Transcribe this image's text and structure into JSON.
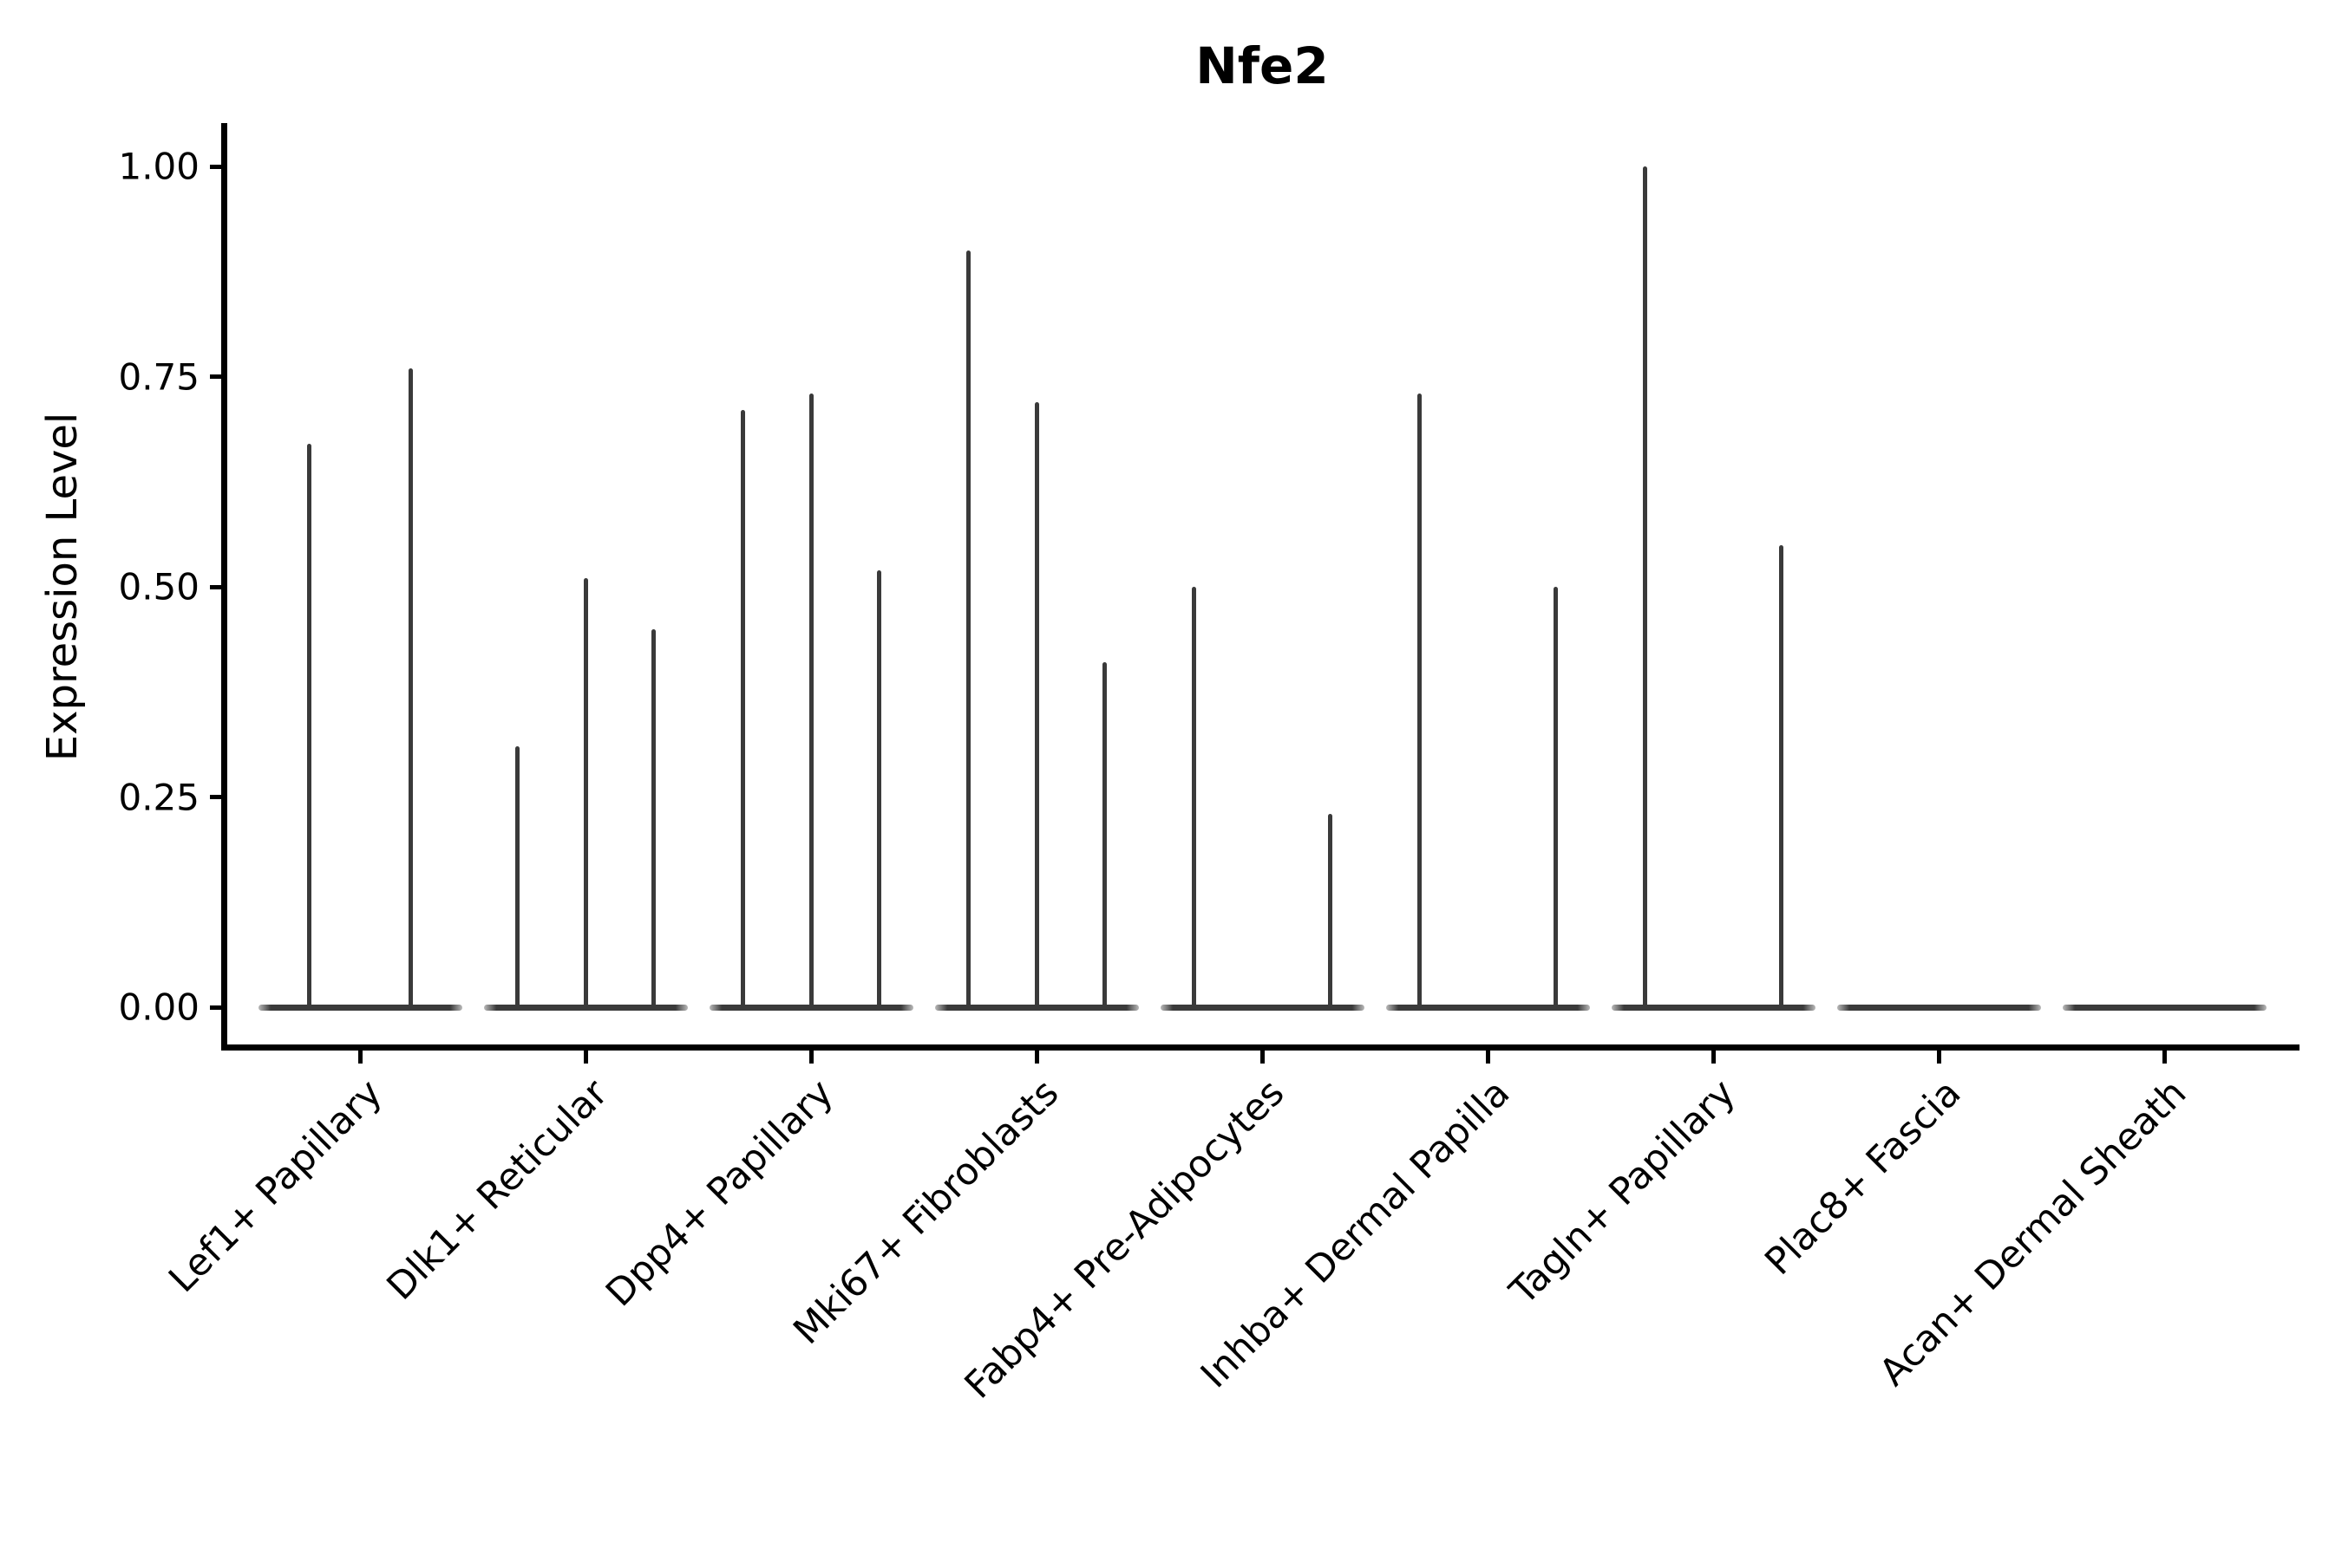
{
  "title": "Nfe2",
  "y_axis": {
    "label": "Expression Level",
    "tick_labels": [
      "1.00",
      "0.75",
      "0.50",
      "0.25",
      "0.00"
    ],
    "tick_values": [
      1.0,
      0.75,
      0.5,
      0.25,
      0.0
    ]
  },
  "x_axis": {
    "categories": [
      "Lef1+ Papillary",
      "Dlk1+ Reticular",
      "Dpp4+ Papillary",
      "Mki67+ Fibroblasts",
      "Fabp4+ Pre-Adipocytes",
      "Inhba+ Dermal Papilla",
      "Tagln+ Papillary",
      "Plac8+ Fascia",
      "Acan+ Dermal Sheath"
    ]
  },
  "colors": {
    "violin": "#3a3a3a",
    "axis": "#000000",
    "text": "#000000",
    "background": "#ffffff"
  },
  "chart_data": {
    "type": "violin",
    "title": "Nfe2",
    "xlabel": "",
    "ylabel": "Expression Level",
    "ylim": [
      0,
      1.0
    ],
    "yticks": [
      0.0,
      0.25,
      0.5,
      0.75,
      1.0
    ],
    "grid": false,
    "legend": false,
    "description": "Needle-like grouped violin plot of Nfe2 expression; most cells at 0 with thin spikes reaching the per-violin maximum expression. Zero peaks are flat baselines.",
    "categories": [
      "Lef1+ Papillary",
      "Dlk1+ Reticular",
      "Dpp4+ Papillary",
      "Mki67+ Fibroblasts",
      "Fabp4+ Pre-Adipocytes",
      "Inhba+ Dermal Papilla",
      "Tagln+ Papillary",
      "Plac8+ Fascia",
      "Acan+ Dermal Sheath"
    ],
    "series": [
      {
        "category": "Lef1+ Papillary",
        "violin_peaks": [
          0.67,
          0.76
        ]
      },
      {
        "category": "Dlk1+ Reticular",
        "violin_peaks": [
          0.31,
          0.51,
          0.45
        ]
      },
      {
        "category": "Dpp4+ Papillary",
        "violin_peaks": [
          0.71,
          0.73,
          0.52
        ]
      },
      {
        "category": "Mki67+ Fibroblasts",
        "violin_peaks": [
          0.9,
          0.72,
          0.41
        ]
      },
      {
        "category": "Fabp4+ Pre-Adipocytes",
        "violin_peaks": [
          0.5,
          0.0,
          0.23
        ]
      },
      {
        "category": "Inhba+ Dermal Papilla",
        "violin_peaks": [
          0.73,
          0.0,
          0.5
        ]
      },
      {
        "category": "Tagln+ Papillary",
        "violin_peaks": [
          1.0,
          0.0,
          0.55
        ]
      },
      {
        "category": "Plac8+ Fascia",
        "violin_peaks": [
          0.0,
          0.0,
          0.0
        ]
      },
      {
        "category": "Acan+ Dermal Sheath",
        "violin_peaks": [
          0.0,
          0.0,
          0.0
        ]
      }
    ]
  }
}
